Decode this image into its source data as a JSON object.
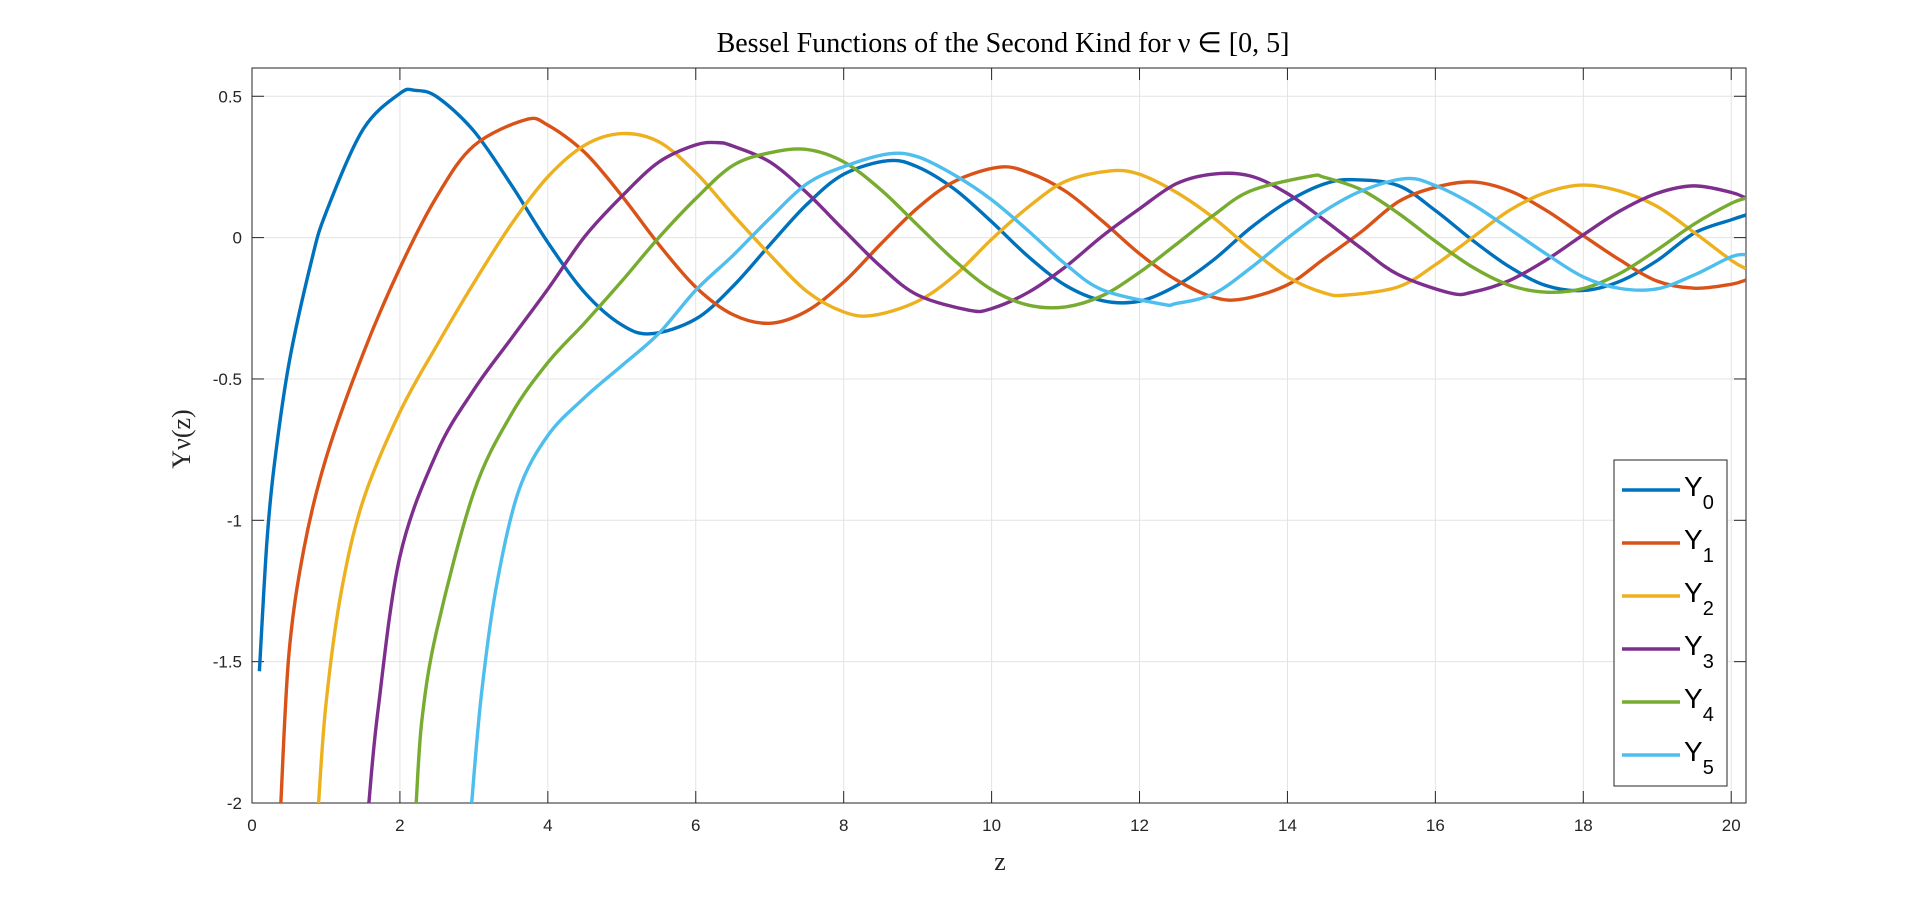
{
  "chart_data": {
    "type": "line",
    "title": "Bessel Functions of the Second Kind for ν ∈ [0, 5]",
    "xlabel": "z",
    "ylabel": "Yν(z)",
    "xlim": [
      0,
      20.2
    ],
    "ylim": [
      -2,
      0.6
    ],
    "xticks": [
      0,
      2,
      4,
      6,
      8,
      10,
      12,
      14,
      16,
      18,
      20
    ],
    "yticks": [
      0.5,
      0,
      -0.5,
      -1,
      -1.5,
      -2
    ],
    "xtick_labels": [
      "0",
      "2",
      "4",
      "6",
      "8",
      "10",
      "12",
      "14",
      "16",
      "18",
      "20"
    ],
    "ytick_labels": [
      "0.5",
      "0",
      "-0.5",
      "-1",
      "-1.5",
      "-2"
    ],
    "grid": true,
    "legend_position": "bottom-right",
    "series": [
      {
        "name": "Y0",
        "main": "Y",
        "sub": "0",
        "color": "#0072BD",
        "x": [
          0.1,
          0.2,
          0.3,
          0.5,
          0.8,
          1.0,
          1.5,
          2.0,
          2.2,
          2.5,
          3.0,
          3.5,
          4.0,
          4.5,
          5.0,
          5.4,
          6.0,
          6.5,
          7.0,
          7.5,
          8.0,
          8.6,
          9.0,
          9.5,
          10.0,
          10.5,
          11.0,
          11.5,
          12.0,
          12.5,
          13.0,
          13.5,
          14.0,
          14.5,
          14.9,
          15.5,
          16.0,
          16.5,
          17.0,
          17.5,
          18.0,
          18.5,
          19.0,
          19.5,
          20.0,
          20.2
        ],
        "y": [
          -1.534,
          -1.081,
          -0.807,
          -0.445,
          -0.087,
          0.088,
          0.382,
          0.51,
          0.521,
          0.498,
          0.377,
          0.189,
          -0.017,
          -0.195,
          -0.309,
          -0.34,
          -0.288,
          -0.173,
          -0.026,
          0.117,
          0.224,
          0.272,
          0.25,
          0.171,
          0.056,
          -0.068,
          -0.169,
          -0.223,
          -0.225,
          -0.17,
          -0.079,
          0.034,
          0.127,
          0.19,
          0.205,
          0.184,
          0.096,
          -0.009,
          -0.103,
          -0.17,
          -0.187,
          -0.154,
          -0.081,
          0.016,
          0.063,
          0.08
        ]
      },
      {
        "name": "Y1",
        "main": "Y",
        "sub": "1",
        "color": "#D95319",
        "x": [
          0.39,
          0.5,
          0.7,
          1.0,
          1.5,
          2.0,
          2.5,
          3.0,
          3.7,
          4.0,
          4.5,
          5.0,
          5.5,
          6.0,
          6.5,
          7.0,
          7.5,
          8.0,
          8.5,
          9.0,
          9.5,
          10.1,
          10.5,
          11.0,
          11.5,
          12.0,
          12.5,
          13.0,
          13.4,
          14.0,
          14.5,
          15.0,
          15.5,
          16.0,
          16.5,
          17.0,
          17.5,
          18.0,
          18.5,
          19.0,
          19.5,
          20.0,
          20.2
        ],
        "y": [
          -2.0,
          -1.471,
          -1.103,
          -0.781,
          -0.412,
          -0.107,
          0.146,
          0.325,
          0.417,
          0.398,
          0.301,
          0.148,
          -0.024,
          -0.175,
          -0.272,
          -0.303,
          -0.26,
          -0.158,
          -0.023,
          0.105,
          0.199,
          0.249,
          0.23,
          0.164,
          0.058,
          -0.057,
          -0.15,
          -0.211,
          -0.217,
          -0.167,
          -0.074,
          0.021,
          0.127,
          0.178,
          0.197,
          0.166,
          0.096,
          0.007,
          -0.08,
          -0.154,
          -0.179,
          -0.165,
          -0.15
        ]
      },
      {
        "name": "Y2",
        "main": "Y",
        "sub": "2",
        "color": "#EDB120",
        "x": [
          0.9,
          1.0,
          1.2,
          1.5,
          2.0,
          2.5,
          3.0,
          3.5,
          4.0,
          4.5,
          5.0,
          5.5,
          6.0,
          6.5,
          7.0,
          7.5,
          8.0,
          8.4,
          9.0,
          9.5,
          10.0,
          10.5,
          11.0,
          11.6,
          12.0,
          12.5,
          13.0,
          13.5,
          14.0,
          14.5,
          14.8,
          15.5,
          16.0,
          16.5,
          17.0,
          17.5,
          18.0,
          18.5,
          19.0,
          19.5,
          20.0,
          20.2
        ],
        "y": [
          -2.0,
          -1.65,
          -1.263,
          -0.932,
          -0.617,
          -0.381,
          -0.16,
          0.045,
          0.215,
          0.327,
          0.368,
          0.339,
          0.23,
          0.082,
          -0.06,
          -0.19,
          -0.263,
          -0.275,
          -0.225,
          -0.134,
          -0.006,
          0.109,
          0.199,
          0.236,
          0.224,
          0.16,
          0.07,
          -0.04,
          -0.139,
          -0.196,
          -0.203,
          -0.174,
          -0.096,
          0.0,
          0.096,
          0.16,
          0.186,
          0.164,
          0.11,
          0.018,
          -0.08,
          -0.11
        ]
      },
      {
        "name": "Y3",
        "main": "Y",
        "sub": "3",
        "color": "#7E2F8E",
        "x": [
          1.58,
          1.7,
          2.0,
          2.5,
          3.0,
          3.5,
          4.0,
          4.5,
          5.0,
          5.5,
          6.0,
          6.3,
          6.5,
          7.0,
          7.5,
          8.0,
          8.5,
          9.0,
          9.7,
          10.0,
          10.5,
          11.0,
          11.5,
          12.0,
          12.5,
          13.0,
          13.5,
          14.0,
          14.5,
          15.0,
          15.5,
          16.2,
          16.5,
          17.0,
          17.5,
          18.0,
          18.5,
          19.0,
          19.5,
          20.0,
          20.2
        ],
        "y": [
          -2.0,
          -1.68,
          -1.128,
          -0.76,
          -0.538,
          -0.359,
          -0.182,
          0.004,
          0.146,
          0.267,
          0.328,
          0.336,
          0.324,
          0.268,
          0.159,
          0.027,
          -0.102,
          -0.203,
          -0.257,
          -0.251,
          -0.193,
          -0.103,
          0.006,
          0.102,
          0.191,
          0.225,
          0.218,
          0.156,
          0.062,
          -0.038,
          -0.131,
          -0.196,
          -0.193,
          -0.152,
          -0.079,
          0.01,
          0.095,
          0.157,
          0.183,
          0.16,
          0.14
        ]
      },
      {
        "name": "Y4",
        "main": "Y",
        "sub": "4",
        "color": "#77AC30",
        "x": [
          2.22,
          2.3,
          2.5,
          3.0,
          3.5,
          4.0,
          4.5,
          5.0,
          5.5,
          6.0,
          6.5,
          7.0,
          7.5,
          8.0,
          8.5,
          9.0,
          9.5,
          10.0,
          10.5,
          11.0,
          11.5,
          12.0,
          12.5,
          13.0,
          13.5,
          14.3,
          14.5,
          15.0,
          15.5,
          16.0,
          16.5,
          17.0,
          17.5,
          18.0,
          18.5,
          19.0,
          19.5,
          20.0,
          20.2
        ],
        "y": [
          -2.0,
          -1.7,
          -1.387,
          -0.9,
          -0.628,
          -0.442,
          -0.301,
          -0.154,
          0.0,
          0.138,
          0.255,
          0.3,
          0.312,
          0.268,
          0.17,
          0.044,
          -0.081,
          -0.184,
          -0.239,
          -0.245,
          -0.205,
          -0.123,
          -0.023,
          0.079,
          0.165,
          0.217,
          0.213,
          0.169,
          0.086,
          -0.013,
          -0.104,
          -0.168,
          -0.193,
          -0.18,
          -0.126,
          -0.043,
          0.048,
          0.121,
          0.14
        ]
      },
      {
        "name": "Y5",
        "main": "Y",
        "sub": "5",
        "color": "#4DBEEE",
        "x": [
          2.97,
          3.1,
          3.3,
          3.6,
          4.0,
          4.5,
          5.0,
          5.5,
          6.0,
          6.5,
          7.0,
          7.5,
          8.0,
          8.6,
          9.0,
          9.5,
          10.0,
          10.5,
          11.0,
          11.5,
          12.3,
          12.5,
          13.0,
          13.5,
          14.0,
          14.5,
          15.0,
          15.6,
          16.0,
          16.5,
          17.0,
          17.5,
          18.0,
          18.5,
          19.0,
          19.5,
          20.0,
          20.2
        ],
        "y": [
          -2.0,
          -1.62,
          -1.24,
          -0.9,
          -0.7,
          -0.565,
          -0.453,
          -0.339,
          -0.186,
          -0.064,
          0.068,
          0.19,
          0.251,
          0.296,
          0.286,
          0.221,
          0.134,
          0.023,
          -0.094,
          -0.185,
          -0.235,
          -0.233,
          -0.199,
          -0.108,
          -0.002,
          0.094,
          0.165,
          0.209,
          0.184,
          0.118,
          0.031,
          -0.058,
          -0.139,
          -0.18,
          -0.181,
          -0.132,
          -0.068,
          -0.06
        ]
      }
    ]
  },
  "colors": {
    "axis": "#262626",
    "grid": "#e3e3e3",
    "background": "#ffffff"
  }
}
